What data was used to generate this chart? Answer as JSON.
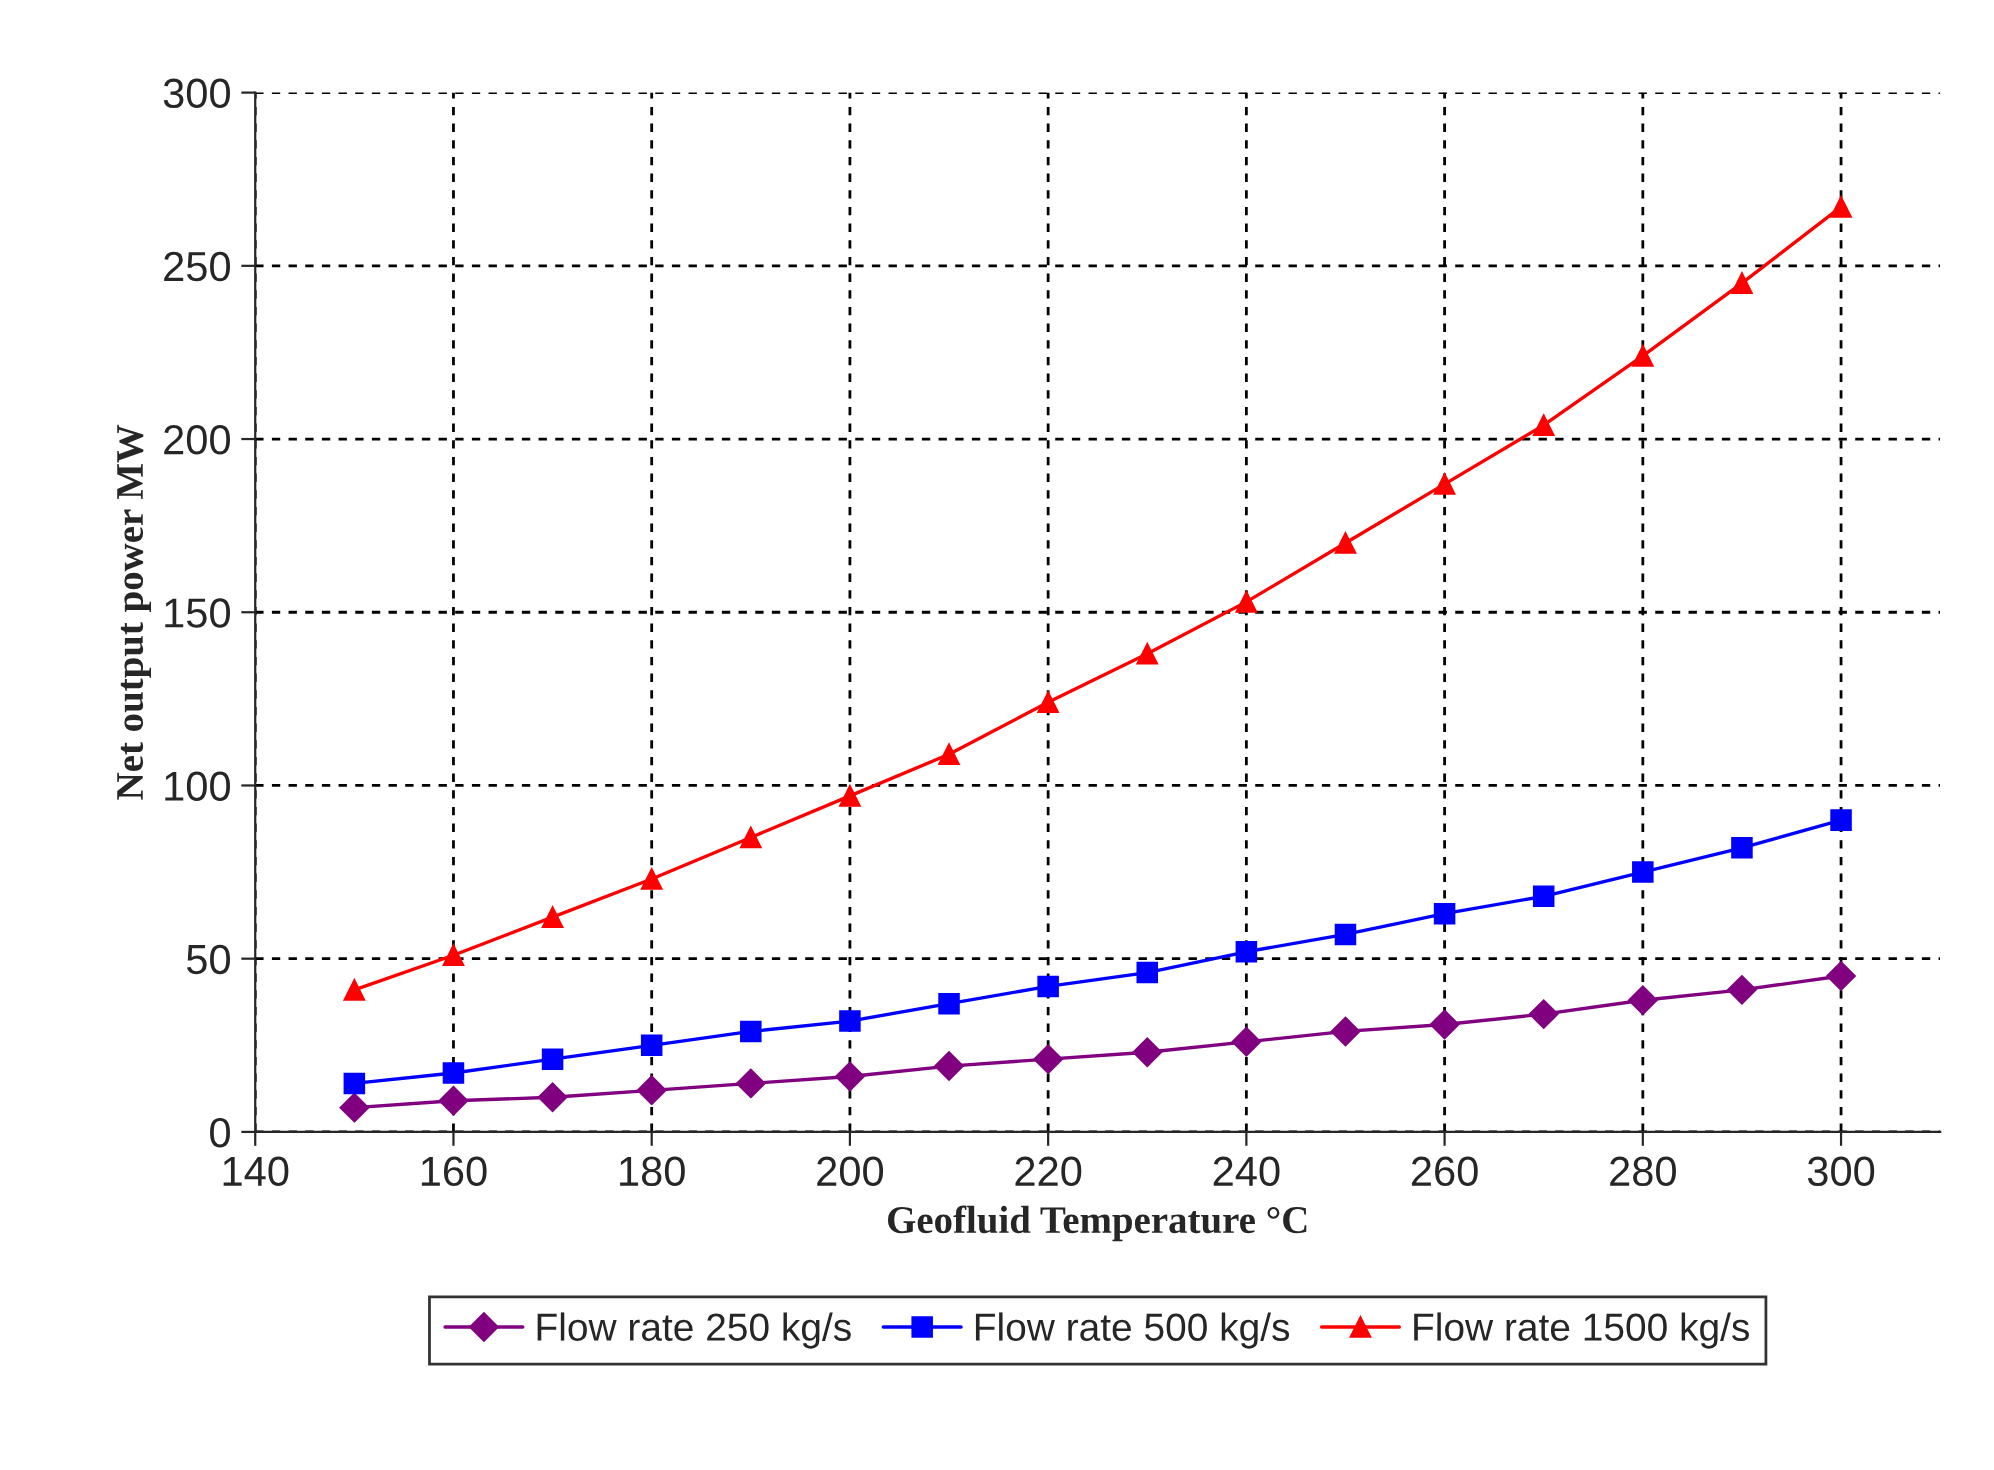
{
  "chart_data": {
    "type": "line",
    "xlabel": "Geofluid Temperature °C",
    "ylabel": "Net output power MW",
    "x": [
      150,
      160,
      170,
      180,
      190,
      200,
      210,
      220,
      230,
      240,
      250,
      260,
      270,
      280,
      290,
      300
    ],
    "series": [
      {
        "name": "Flow rate 250 kg/s",
        "color": "#800080",
        "marker": "diamond",
        "values": [
          7,
          9,
          10,
          12,
          14,
          16,
          19,
          21,
          23,
          26,
          29,
          31,
          34,
          38,
          41,
          45
        ]
      },
      {
        "name": "Flow rate 500 kg/s",
        "color": "#0000ff",
        "marker": "square",
        "values": [
          14,
          17,
          21,
          25,
          29,
          32,
          37,
          42,
          46,
          52,
          57,
          63,
          68,
          75,
          82,
          90
        ]
      },
      {
        "name": "Flow rate 1500 kg/s",
        "color": "#ff0000",
        "marker": "triangle",
        "values": [
          41,
          51,
          62,
          73,
          85,
          97,
          109,
          124,
          138,
          153,
          170,
          187,
          204,
          224,
          245,
          267
        ]
      }
    ],
    "xlim": [
      140,
      310
    ],
    "xticks": [
      140,
      160,
      180,
      200,
      220,
      240,
      260,
      280,
      300
    ],
    "ylim": [
      0,
      300
    ],
    "yticks": [
      0,
      50,
      100,
      150,
      200,
      250,
      300
    ],
    "grid": true,
    "legend": "bottom",
    "line_style": "solid"
  }
}
